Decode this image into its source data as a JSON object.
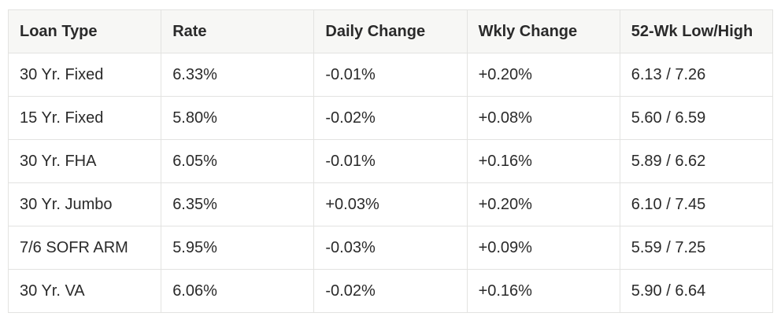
{
  "table": {
    "header": [
      "Loan Type",
      "Rate",
      "Daily Change",
      "Wkly Change",
      "52-Wk Low/High"
    ],
    "rows": [
      [
        "30 Yr. Fixed",
        "6.33%",
        "-0.01%",
        "+0.20%",
        "6.13 / 7.26"
      ],
      [
        "15 Yr. Fixed",
        "5.80%",
        "-0.02%",
        "+0.08%",
        "5.60 / 6.59"
      ],
      [
        "30 Yr. FHA",
        "6.05%",
        "-0.01%",
        "+0.16%",
        "5.89 / 6.62"
      ],
      [
        "30 Yr. Jumbo",
        "6.35%",
        "+0.03%",
        "+0.20%",
        "6.10 / 7.45"
      ],
      [
        "7/6 SOFR ARM",
        "5.95%",
        "-0.03%",
        "+0.09%",
        "5.59 / 7.25"
      ],
      [
        "30 Yr. VA",
        "6.06%",
        "-0.02%",
        "+0.16%",
        "5.90 / 6.64"
      ]
    ]
  }
}
